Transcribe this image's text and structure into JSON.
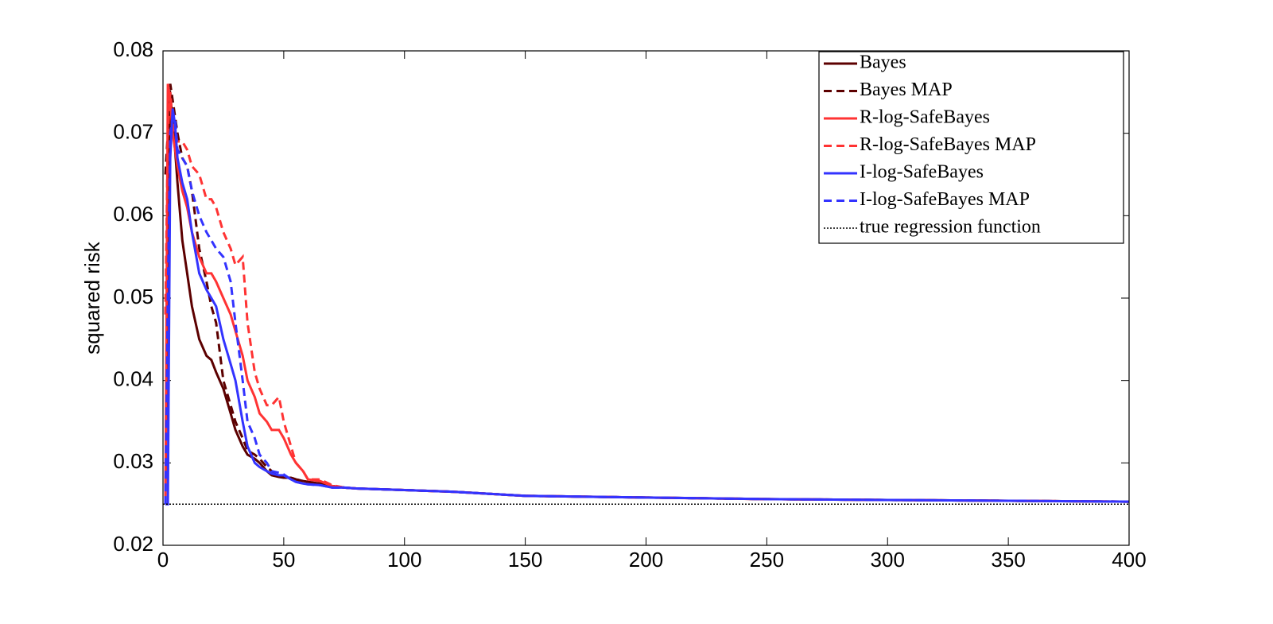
{
  "chart_data": {
    "type": "line",
    "y_label": "squared risk",
    "x": [
      1,
      2,
      3,
      4,
      5,
      6,
      8,
      10,
      12,
      15,
      18,
      20,
      22,
      25,
      28,
      30,
      33,
      35,
      38,
      40,
      43,
      45,
      48,
      50,
      53,
      55,
      58,
      60,
      65,
      70,
      75,
      80,
      90,
      100,
      120,
      150,
      200,
      250,
      300,
      350,
      400
    ],
    "series": [
      {
        "name": "Bayes",
        "color": "#5c0000",
        "dash": "solid",
        "values": [
          0.025,
          0.06,
          0.075,
          0.071,
          0.068,
          0.064,
          0.057,
          0.053,
          0.049,
          0.045,
          0.043,
          0.0425,
          0.041,
          0.039,
          0.036,
          0.034,
          0.032,
          0.031,
          0.0305,
          0.03,
          0.029,
          0.0285,
          0.0283,
          0.0282,
          0.0282,
          0.028,
          0.0278,
          0.0277,
          0.0275,
          0.0272,
          0.027,
          0.0269,
          0.0268,
          0.0267,
          0.0265,
          0.026,
          0.0258,
          0.0256,
          0.0255,
          0.0254,
          0.0253
        ]
      },
      {
        "name": "Bayes MAP",
        "color": "#5c0000",
        "dash": "dashed",
        "values": [
          0.065,
          0.07,
          0.076,
          0.074,
          0.072,
          0.07,
          0.067,
          0.066,
          0.063,
          0.056,
          0.052,
          0.049,
          0.047,
          0.04,
          0.037,
          0.035,
          0.033,
          0.0315,
          0.031,
          0.0305,
          0.0295,
          0.029,
          0.0285,
          0.0283,
          0.0282,
          0.028,
          0.0278,
          0.0277,
          0.0275,
          0.0272,
          0.027,
          0.0269,
          0.0268,
          0.0267,
          0.0265,
          0.026,
          0.0258,
          0.0256,
          0.0255,
          0.0254,
          0.0253
        ]
      },
      {
        "name": "R-log-SafeBayes",
        "color": "#ff3333",
        "dash": "solid",
        "values": [
          0.025,
          0.076,
          0.074,
          0.07,
          0.068,
          0.066,
          0.063,
          0.061,
          0.058,
          0.055,
          0.053,
          0.053,
          0.052,
          0.05,
          0.048,
          0.046,
          0.043,
          0.04,
          0.038,
          0.036,
          0.035,
          0.034,
          0.034,
          0.033,
          0.031,
          0.03,
          0.029,
          0.028,
          0.0278,
          0.0272,
          0.027,
          0.0269,
          0.0268,
          0.0267,
          0.0265,
          0.026,
          0.0258,
          0.0256,
          0.0255,
          0.0254,
          0.0253
        ]
      },
      {
        "name": "R-log-SafeBayes MAP",
        "color": "#ff3333",
        "dash": "dashed",
        "values": [
          0.048,
          0.07,
          0.075,
          0.071,
          0.07,
          0.069,
          0.069,
          0.068,
          0.066,
          0.065,
          0.062,
          0.062,
          0.061,
          0.058,
          0.056,
          0.054,
          0.055,
          0.047,
          0.041,
          0.039,
          0.037,
          0.037,
          0.038,
          0.035,
          0.032,
          0.03,
          0.029,
          0.028,
          0.028,
          0.0273,
          0.027,
          0.0269,
          0.0268,
          0.0267,
          0.0265,
          0.026,
          0.0258,
          0.0256,
          0.0255,
          0.0254,
          0.0253
        ]
      },
      {
        "name": "I-log-SafeBayes",
        "color": "#3333ff",
        "dash": "solid",
        "values": [
          0.025,
          0.025,
          0.067,
          0.073,
          0.071,
          0.067,
          0.064,
          0.062,
          0.058,
          0.053,
          0.051,
          0.05,
          0.049,
          0.045,
          0.042,
          0.04,
          0.035,
          0.032,
          0.03,
          0.0295,
          0.029,
          0.0287,
          0.0285,
          0.0285,
          0.028,
          0.0277,
          0.0275,
          0.0274,
          0.0273,
          0.027,
          0.027,
          0.0269,
          0.0268,
          0.0267,
          0.0265,
          0.026,
          0.0258,
          0.0256,
          0.0255,
          0.0254,
          0.0253
        ]
      },
      {
        "name": "I-log-SafeBayes MAP",
        "color": "#3333ff",
        "dash": "dashed",
        "values": [
          0.025,
          0.05,
          0.07,
          0.072,
          0.072,
          0.068,
          0.067,
          0.066,
          0.063,
          0.06,
          0.058,
          0.057,
          0.056,
          0.055,
          0.052,
          0.047,
          0.04,
          0.035,
          0.033,
          0.031,
          0.03,
          0.029,
          0.0288,
          0.0286,
          0.028,
          0.0277,
          0.0275,
          0.0274,
          0.0273,
          0.027,
          0.027,
          0.0269,
          0.0268,
          0.0267,
          0.0265,
          0.026,
          0.0258,
          0.0256,
          0.0255,
          0.0254,
          0.0253
        ]
      },
      {
        "name": "true regression function",
        "color": "#000000",
        "dash": "dotted",
        "x": [
          0,
          400
        ],
        "values": [
          0.025,
          0.025
        ]
      }
    ],
    "xlim": [
      0,
      400
    ],
    "xticks": [
      0,
      50,
      100,
      150,
      200,
      250,
      300,
      350,
      400
    ],
    "ylim": [
      0.02,
      0.08
    ],
    "yticks": [
      0.02,
      0.03,
      0.04,
      0.05,
      0.06,
      0.07,
      0.08
    ],
    "legend": "upper-right"
  }
}
